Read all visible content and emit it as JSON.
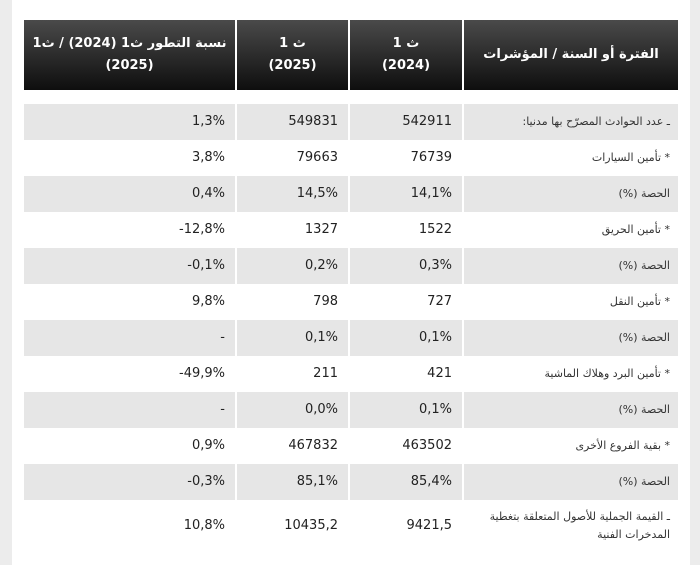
{
  "table": {
    "header": [
      [
        "الفترة أو السنة / المؤشرات"
      ],
      [
        "ث 1",
        "(2024)"
      ],
      [
        "ث 1",
        "(2025)"
      ],
      [
        "نسبة التطور ث1 (2024) / ث1",
        "(2025)"
      ]
    ],
    "rows": [
      [
        "ـ عدد الحوادث المصرّح بها مدنيا:",
        "542911",
        "549831",
        "1,3%"
      ],
      [
        "* تأمين السيارات",
        "76739",
        "79663",
        "3,8%"
      ],
      [
        "الحصة (%)",
        "14,1%",
        "14,5%",
        "0,4%"
      ],
      [
        "* تأمين الحريق",
        "1522",
        "1327",
        "-12,8%"
      ],
      [
        "الحصة (%)",
        "0,3%",
        "0,2%",
        "-0,1%"
      ],
      [
        "* تأمين النقل",
        "727",
        "798",
        "9,8%"
      ],
      [
        "الحصة (%)",
        "0,1%",
        "0,1%",
        "-"
      ],
      [
        "* تأمين البرد وهلاك الماشية",
        "421",
        "211",
        "-49,9%"
      ],
      [
        "الحصة (%)",
        "0,1%",
        "0,0%",
        "-"
      ],
      [
        "* بقية الفروع الأخرى",
        "463502",
        "467832",
        "0,9%"
      ],
      [
        "الحصة (%)",
        "85,4%",
        "85,1%",
        "-0,3%"
      ],
      [
        "ـ القيمة الجملية للأصول المتعلقة بتغطية المدخرات الفنية",
        "9421,5",
        "10435,2",
        "10,8%"
      ]
    ]
  }
}
